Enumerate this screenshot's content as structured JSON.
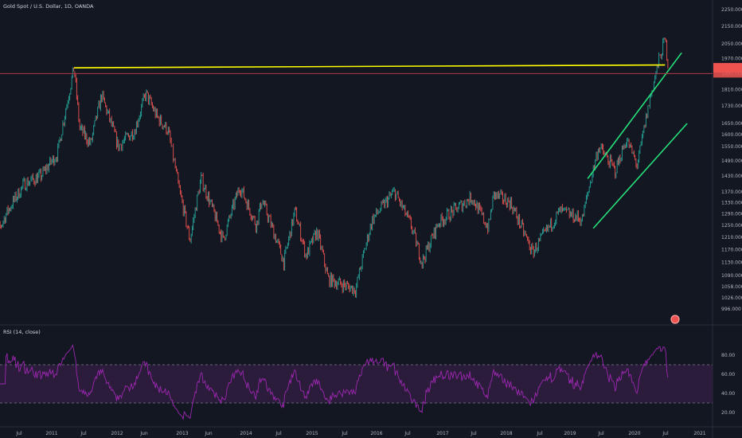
{
  "chart_data": [
    {
      "type": "candlestick",
      "title": "Gold Spot / U.S. Dollar, 1D, OANDA",
      "ylim": [
        970,
        2250
      ],
      "y_ticks": [
        996,
        1026,
        1058,
        1090,
        1130,
        1170,
        1210,
        1250,
        1290,
        1330,
        1370,
        1430,
        1490,
        1550,
        1600,
        1650,
        1730,
        1810,
        1890,
        1970,
        2050,
        2150,
        2250
      ],
      "y_tick_labels": [
        "996.000",
        "1026.000",
        "1058.000",
        "1090.000",
        "1130.000",
        "1170.000",
        "1210.000",
        "1250.000",
        "1290.000",
        "1330.000",
        "1370.000",
        "1430.000",
        "1490.000",
        "1550.000",
        "1600.000",
        "1650.000",
        "1730.000",
        "1810.000",
        "1890.000",
        "1970.000",
        "2050.000",
        "2150.000",
        "2250.000"
      ],
      "x_ticks": [
        "Jul",
        "2011",
        "Jul",
        "2012",
        "Jun",
        "2013",
        "Jun",
        "2014",
        "Jul",
        "2015",
        "Jul",
        "2016",
        "Jul",
        "2017",
        "Jul",
        "2018",
        "Jul",
        "2019",
        "Jul",
        "2020",
        "Jul",
        "2021"
      ],
      "price_path": [
        [
          "2010-06",
          1180
        ],
        [
          "2010-09",
          1300
        ],
        [
          "2010-12",
          1400
        ],
        [
          "2011-03",
          1430
        ],
        [
          "2011-06",
          1520
        ],
        [
          "2011-08",
          1780
        ],
        [
          "2011-09",
          1920
        ],
        [
          "2011-10",
          1630
        ],
        [
          "2011-12",
          1560
        ],
        [
          "2012-02",
          1780
        ],
        [
          "2012-05",
          1550
        ],
        [
          "2012-08",
          1620
        ],
        [
          "2012-10",
          1790
        ],
        [
          "2012-12",
          1680
        ],
        [
          "2013-02",
          1620
        ],
        [
          "2013-04",
          1380
        ],
        [
          "2013-06",
          1200
        ],
        [
          "2013-08",
          1420
        ],
        [
          "2013-12",
          1200
        ],
        [
          "2014-03",
          1390
        ],
        [
          "2014-06",
          1250
        ],
        [
          "2014-07",
          1340
        ],
        [
          "2014-11",
          1130
        ],
        [
          "2015-01",
          1300
        ],
        [
          "2015-03",
          1150
        ],
        [
          "2015-05",
          1230
        ],
        [
          "2015-07",
          1080
        ],
        [
          "2015-12",
          1050
        ],
        [
          "2016-03",
          1270
        ],
        [
          "2016-07",
          1370
        ],
        [
          "2016-10",
          1250
        ],
        [
          "2016-12",
          1130
        ],
        [
          "2017-03",
          1260
        ],
        [
          "2017-09",
          1350
        ],
        [
          "2017-12",
          1240
        ],
        [
          "2018-01",
          1360
        ],
        [
          "2018-04",
          1330
        ],
        [
          "2018-08",
          1160
        ],
        [
          "2019-01",
          1300
        ],
        [
          "2019-05",
          1270
        ],
        [
          "2019-08",
          1550
        ],
        [
          "2019-11",
          1450
        ],
        [
          "2020-01",
          1580
        ],
        [
          "2020-03",
          1470
        ],
        [
          "2020-05",
          1730
        ],
        [
          "2020-07",
          1970
        ],
        [
          "2020-08",
          2075
        ],
        [
          "2020-08-20",
          1920
        ]
      ],
      "lines": [
        {
          "name": "resistance",
          "color": "#ffff00",
          "from": [
            "2011-09",
            1920
          ],
          "to": [
            "2020-08",
            1935
          ]
        },
        {
          "name": "channel-upper",
          "color": "#26e07a",
          "from": [
            "2019-06",
            1420
          ],
          "to": [
            "2020-11",
            2000
          ]
        },
        {
          "name": "channel-lower",
          "color": "#26e07a",
          "from": [
            "2019-07",
            1240
          ],
          "to": [
            "2020-12",
            1650
          ]
        },
        {
          "name": "horizontal",
          "color": "#b23a48",
          "value": 1890
        }
      ],
      "price_label_color": "#ef5350"
    },
    {
      "type": "line",
      "title": "RSI (14, close)",
      "ylim": [
        10,
        100
      ],
      "y_ticks": [
        20,
        40,
        60,
        80
      ],
      "y_tick_labels": [
        "20.00",
        "40.00",
        "60.00",
        "80.00"
      ],
      "upper_band": 70,
      "lower_band": 30,
      "color": "#9c27b0"
    }
  ],
  "colors": {
    "background": "#131722",
    "up": "#26a69a",
    "down": "#ef5350",
    "axis_text": "#b2b5be",
    "rsi_fill": "#2a1c3a"
  }
}
